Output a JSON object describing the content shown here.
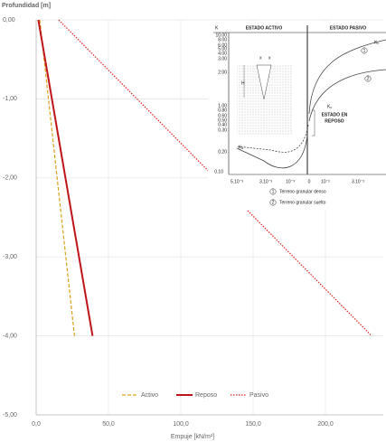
{
  "chart_data": {
    "type": "line",
    "y_label": "Profundidad  [m]",
    "x_label": "Empuje [kN/m²]",
    "xlim": [
      0,
      240
    ],
    "xticks": [
      {
        "value": 0,
        "label": "0,0"
      },
      {
        "value": 50,
        "label": "50,0"
      },
      {
        "value": 100,
        "label": "100,0"
      },
      {
        "value": 150,
        "label": "150,0"
      },
      {
        "value": 200,
        "label": "200,0"
      }
    ],
    "ylim": [
      -5,
      0
    ],
    "yticks": [
      {
        "value": 0,
        "label": "0,00"
      },
      {
        "value": -1,
        "label": "-1,00"
      },
      {
        "value": -2,
        "label": "-2,00"
      },
      {
        "value": -3,
        "label": "-3,00"
      },
      {
        "value": -4,
        "label": "-4,00"
      },
      {
        "value": -5,
        "label": "-5,00"
      }
    ],
    "grid": true,
    "series": [
      {
        "name": "Activo",
        "color": "#d9a21b",
        "line_style": "dashed",
        "x": [
          2.5,
          26.5
        ],
        "values": [
          0,
          -4
        ]
      },
      {
        "name": "Reposo",
        "color": "#c0141b",
        "line_style": "solid",
        "x": [
          1.5,
          39
        ],
        "values": [
          0,
          -4
        ]
      },
      {
        "name": "Pasivo",
        "color": "#e0201c",
        "line_style": "dotted",
        "x": [
          15.6,
          232
        ],
        "values": [
          0,
          -4
        ]
      }
    ]
  },
  "inset": {
    "k": "K",
    "active": "ESTADO ACTIVO",
    "passive": "ESTADO PASIVO",
    "yticks": [
      "10.00",
      "8.00",
      "6.00",
      "5.00",
      "4.00",
      "3.00",
      "2.00",
      "1.00",
      "0.80",
      "0.60",
      "0.50",
      "0.40",
      "0.30",
      "0.20",
      "0.10"
    ],
    "xticks": [
      "5.10⁻³",
      "3.10⁻³",
      "10⁻³",
      "0",
      "10⁻²",
      "3.10⁻²"
    ],
    "kp": "Kₚ",
    "ko": "Kₒ",
    "ka": "Kₐ",
    "rest_1": "ESTADO EN",
    "rest_2": "REPOSO",
    "h": "H",
    "x": "x",
    "legend": [
      {
        "num": "1",
        "text": "Terreno granular denso"
      },
      {
        "num": "2",
        "text": "Terreno granular suelto"
      }
    ]
  }
}
